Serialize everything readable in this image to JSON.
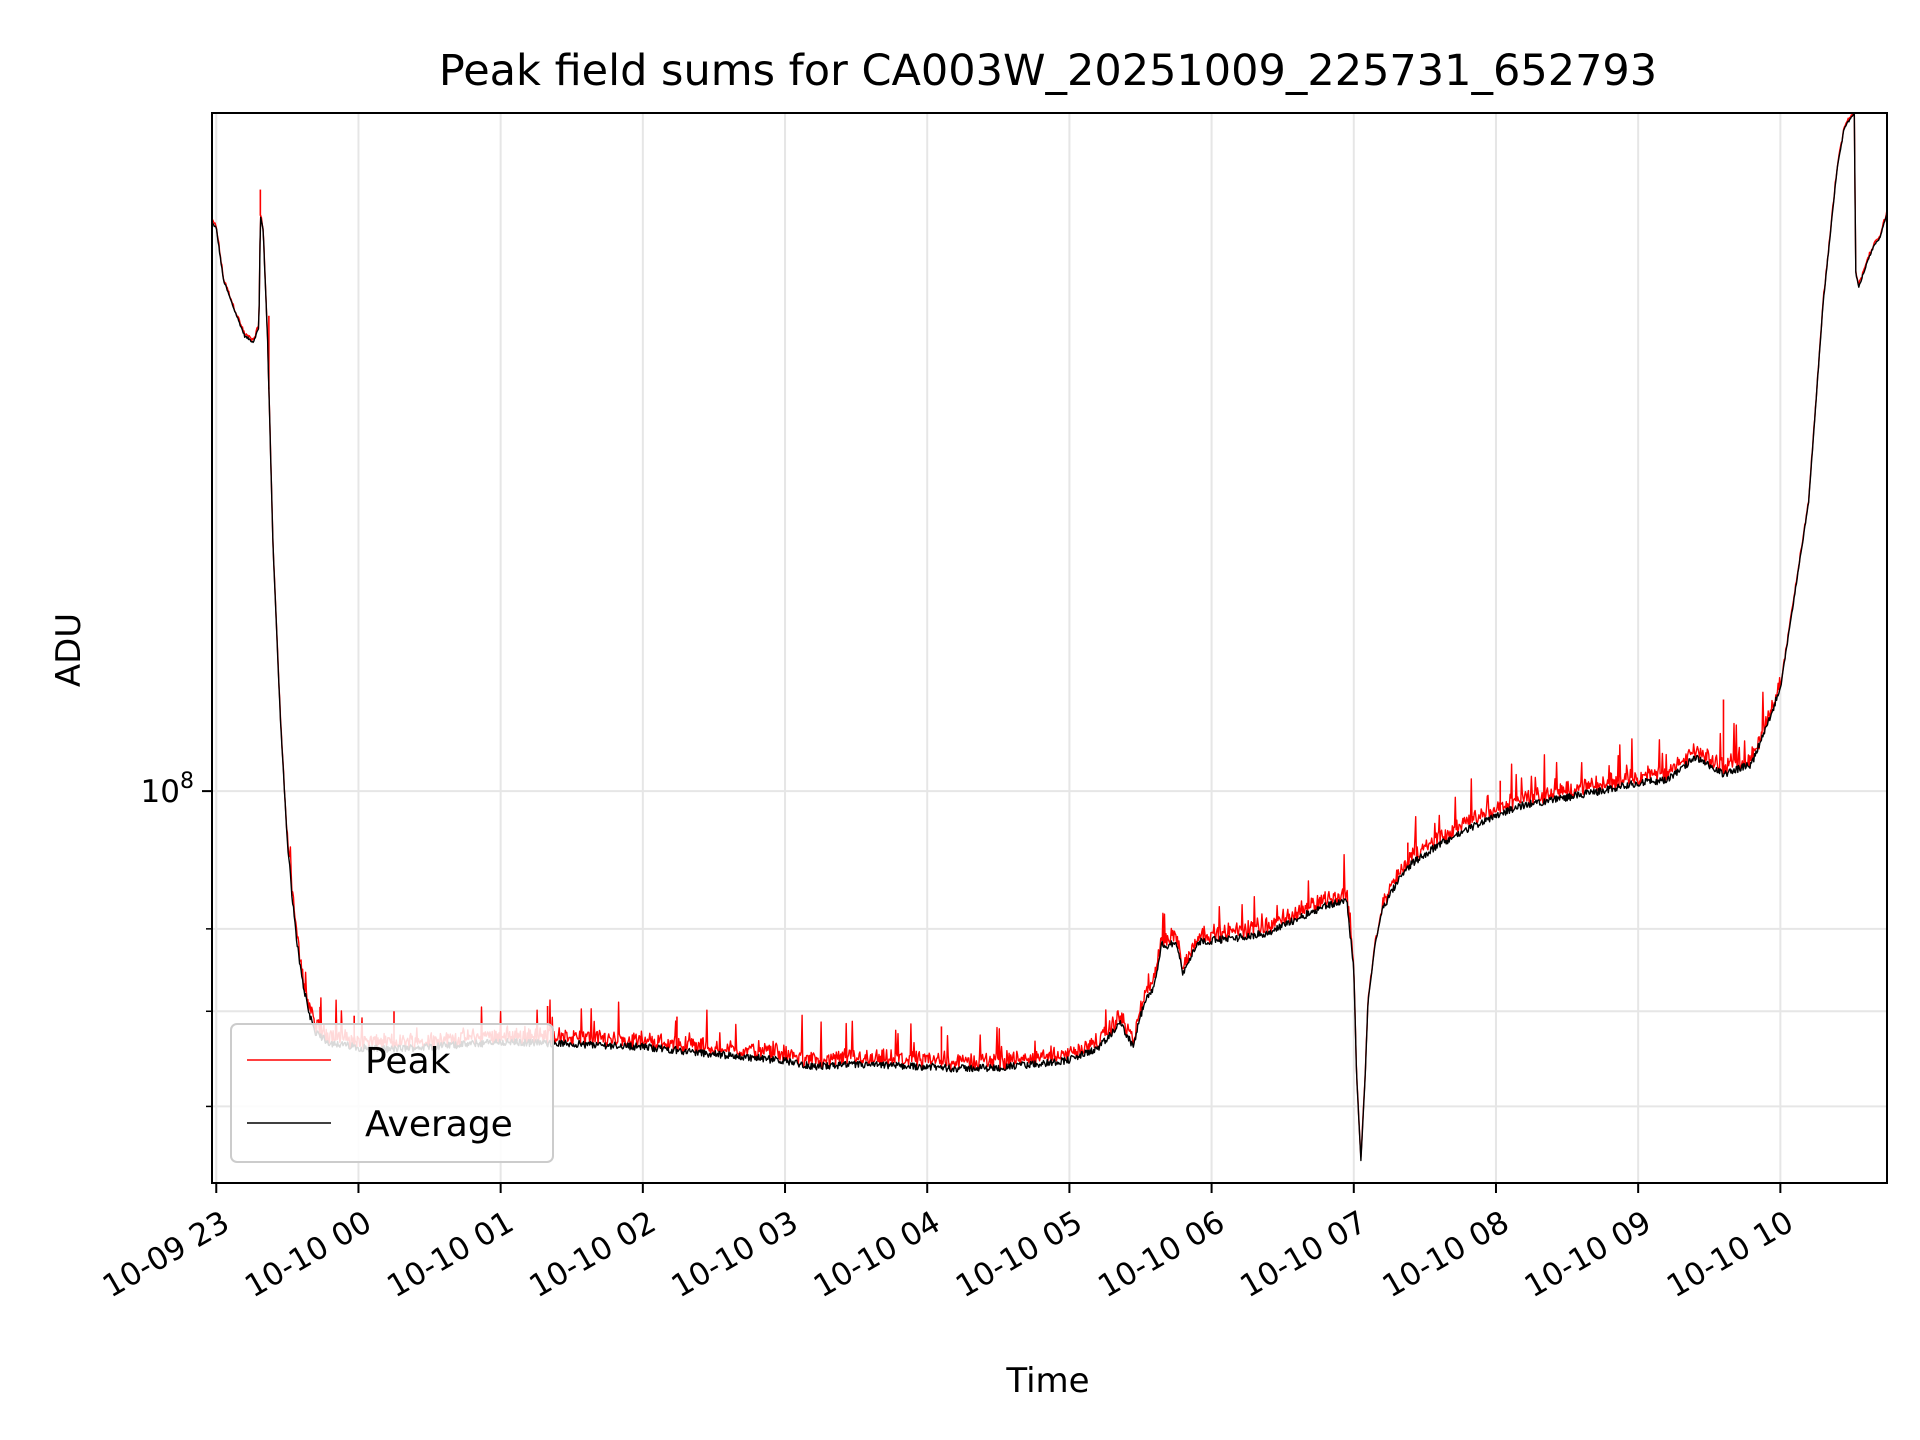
{
  "chart_data": {
    "type": "line",
    "title": "Peak field sums for CA003W_20251009_225731_652793",
    "xlabel": "Time",
    "ylabel": "ADU",
    "yscale": "log",
    "ytick_major_label": "10",
    "ytick_major_exponent": "8",
    "ytick_major_value": 100000000,
    "ytick_minor_values": [
      60000000,
      70000000,
      80000000
    ],
    "ylim": [
      53000000,
      300000000
    ],
    "xlim_hours": [
      -0.03,
      11.75
    ],
    "grid": true,
    "legend_position": "lower-left",
    "x_ticks": [
      {
        "label": "10-09 23",
        "hour": 0
      },
      {
        "label": "10-10 00",
        "hour": 1
      },
      {
        "label": "10-10 01",
        "hour": 2
      },
      {
        "label": "10-10 02",
        "hour": 3
      },
      {
        "label": "10-10 03",
        "hour": 4
      },
      {
        "label": "10-10 04",
        "hour": 5
      },
      {
        "label": "10-10 05",
        "hour": 6
      },
      {
        "label": "10-10 06",
        "hour": 7
      },
      {
        "label": "10-10 07",
        "hour": 8
      },
      {
        "label": "10-10 08",
        "hour": 9
      },
      {
        "label": "10-10 09",
        "hour": 10
      },
      {
        "label": "10-10 10",
        "hour": 11
      }
    ],
    "series": [
      {
        "name": "Peak",
        "color": "#ff0000"
      },
      {
        "name": "Average",
        "color": "#000000"
      }
    ],
    "average_profile": {
      "hours": [
        -0.03,
        0.0,
        0.05,
        0.12,
        0.2,
        0.26,
        0.3,
        0.31,
        0.33,
        0.36,
        0.4,
        0.45,
        0.5,
        0.55,
        0.6,
        0.65,
        0.7,
        0.8,
        0.9,
        1.0,
        1.2,
        1.5,
        2.0,
        2.5,
        3.0,
        3.5,
        4.0,
        4.2,
        4.5,
        5.0,
        5.2,
        5.5,
        5.8,
        6.0,
        6.2,
        6.3,
        6.35,
        6.4,
        6.45,
        6.5,
        6.55,
        6.6,
        6.65,
        6.7,
        6.75,
        6.8,
        6.9,
        7.0,
        7.2,
        7.4,
        7.6,
        7.8,
        7.95,
        8.0,
        8.02,
        8.05,
        8.08,
        8.1,
        8.15,
        8.2,
        8.3,
        8.4,
        8.6,
        8.8,
        9.0,
        9.2,
        9.5,
        9.8,
        10.0,
        10.2,
        10.3,
        10.4,
        10.5,
        10.6,
        10.8,
        11.0,
        11.2,
        11.3,
        11.4,
        11.45,
        11.5,
        11.52,
        11.53,
        11.55,
        11.6,
        11.65,
        11.7,
        11.75
      ],
      "values": [
        251000000,
        249000000,
        229000000,
        219000000,
        209000000,
        207000000,
        212000000,
        254000000,
        248000000,
        209000000,
        148000000,
        113000000,
        92000000,
        81000000,
        74000000,
        70000000,
        67500000,
        66500000,
        66300000,
        66000000,
        65800000,
        66100000,
        66600000,
        66400000,
        66100000,
        65300000,
        64600000,
        64000000,
        64200000,
        64000000,
        63800000,
        63900000,
        64300000,
        64700000,
        65900000,
        67500000,
        68800000,
        67500000,
        66100000,
        69500000,
        71700000,
        73000000,
        78000000,
        77800000,
        78500000,
        74300000,
        78300000,
        78500000,
        78900000,
        79500000,
        81300000,
        83100000,
        83700000,
        75000000,
        63000000,
        55000000,
        63000000,
        71000000,
        78000000,
        82500000,
        86100000,
        88800000,
        91700000,
        94000000,
        96200000,
        97800000,
        99000000,
        100300000,
        101400000,
        101800000,
        103500000,
        105700000,
        104100000,
        102800000,
        104500000,
        118000000,
        160000000,
        220000000,
        275000000,
        293000000,
        298000000,
        300000000,
        232000000,
        226000000,
        234000000,
        241000000,
        245000000,
        255000000
      ]
    },
    "peak_spikes": [
      {
        "hour": 0.31,
        "value": 265000000
      },
      {
        "hour": 0.37,
        "value": 216000000
      },
      {
        "hour": 0.73,
        "value": 70500000
      },
      {
        "hour": 0.97,
        "value": 69500000
      },
      {
        "hour": 1.25,
        "value": 70000000
      },
      {
        "hour": 2.33,
        "value": 70600000
      },
      {
        "hour": 3.24,
        "value": 69400000
      },
      {
        "hour": 5.1,
        "value": 68300000
      },
      {
        "hour": 8.38,
        "value": 92000000
      },
      {
        "hour": 9.03,
        "value": 101700000
      },
      {
        "hour": 10.6,
        "value": 116000000
      },
      {
        "hour": 10.85,
        "value": 107000000
      }
    ]
  },
  "legend": {
    "items": [
      {
        "label": "Peak",
        "color": "#ff0000"
      },
      {
        "label": "Average",
        "color": "#000000"
      }
    ]
  }
}
